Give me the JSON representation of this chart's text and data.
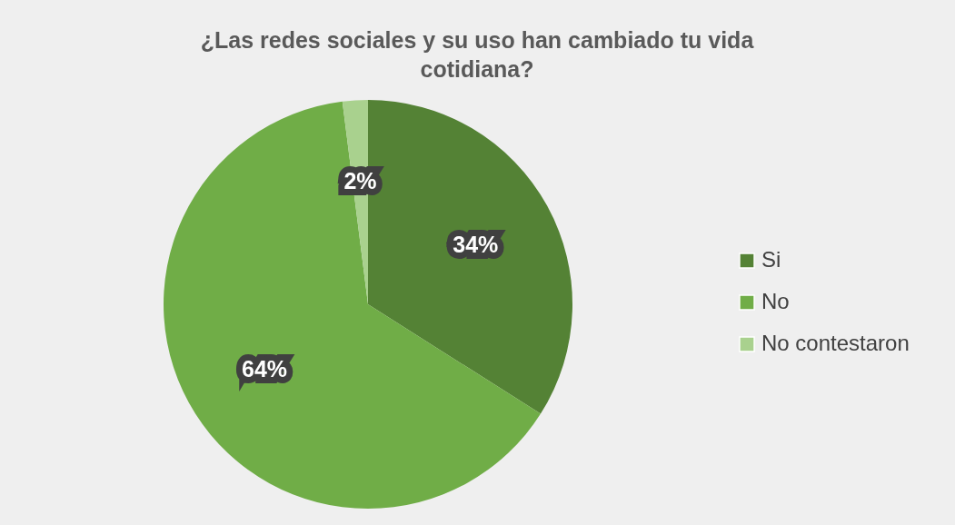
{
  "chart_data": {
    "type": "pie",
    "title": "¿Las redes sociales y su uso han cambiado tu vida cotidiana?",
    "categories": [
      "Si",
      "No",
      "No contestaron"
    ],
    "values": [
      34,
      64,
      2
    ],
    "colors": [
      "#548235",
      "#70ad47",
      "#a9d18e"
    ],
    "value_labels": [
      "34%",
      "64%",
      "2%"
    ],
    "legend": "right"
  }
}
